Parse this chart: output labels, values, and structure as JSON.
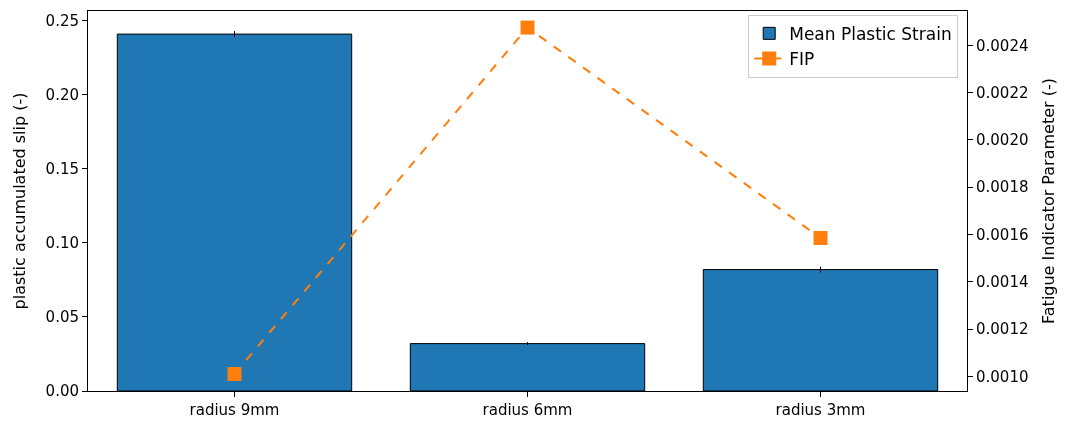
{
  "chart_data": {
    "type": "bar",
    "categories": [
      "radius 9mm",
      "radius 6mm",
      "radius 3mm"
    ],
    "ylabel": "plastic accumulated slip (-)",
    "y2label": "Fatigue Indicator Parameter (-)",
    "series": [
      {
        "name": "Mean Plastic Strain",
        "color": "#1f77b4",
        "values": [
          0.241,
          0.032,
          0.082
        ],
        "errors": [
          0.002,
          0.001,
          0.002
        ]
      },
      {
        "name": "FIP",
        "type": "line",
        "axis": "y2",
        "color": "#ff7f0e",
        "values": [
          0.00101,
          0.002475,
          0.001585
        ],
        "marker": "square",
        "line_style": "dashed"
      }
    ],
    "ylim": [
      0,
      0.2566
    ],
    "yticks": [
      {
        "value": 0,
        "label": "0.00"
      },
      {
        "value": 0.05,
        "label": "0.05"
      },
      {
        "value": 0.1,
        "label": "0.10"
      },
      {
        "value": 0.15,
        "label": "0.15"
      },
      {
        "value": 0.2,
        "label": "0.20"
      },
      {
        "value": 0.25,
        "label": "0.25"
      }
    ],
    "y2lim": [
      0.000938,
      0.002545
    ],
    "y2ticks": [
      {
        "value": 0.001,
        "label": "0.0010"
      },
      {
        "value": 0.0012,
        "label": "0.0012"
      },
      {
        "value": 0.0014,
        "label": "0.0014"
      },
      {
        "value": 0.0016,
        "label": "0.0016"
      },
      {
        "value": 0.0018,
        "label": "0.0018"
      },
      {
        "value": 0.002,
        "label": "0.0020"
      },
      {
        "value": 0.0022,
        "label": "0.0022"
      },
      {
        "value": 0.0024,
        "label": "0.0024"
      }
    ],
    "legend": "top right"
  }
}
